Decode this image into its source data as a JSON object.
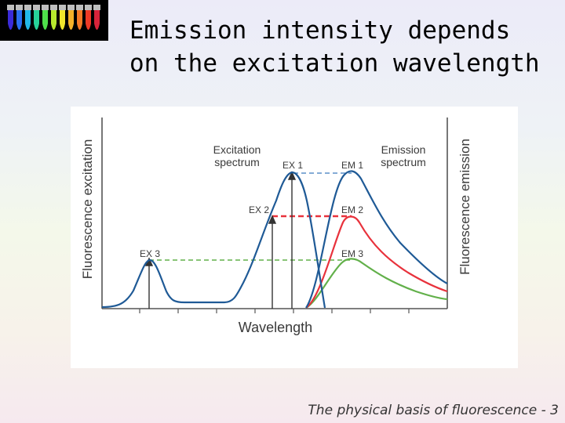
{
  "slide": {
    "title": "Emission intensity depends on the excitation wavelength",
    "footer": "The physical basis of fluorescence - 3"
  },
  "logo": {
    "tube_colors": [
      "#3b2bd8",
      "#2a6ff0",
      "#22b8e8",
      "#27d39a",
      "#4ee04a",
      "#b7ea2d",
      "#f0e62c",
      "#f5b22a",
      "#f47a26",
      "#ee3a26",
      "#d8233a"
    ]
  },
  "diagram": {
    "y_left_label": "Fluorescence excitation",
    "y_right_label": "Fluorescence emission",
    "x_label": "Wavelength",
    "excitation_label": [
      "Excitation",
      "spectrum"
    ],
    "emission_label": [
      "Emission",
      "spectrum"
    ],
    "ex_labels": [
      "EX 1",
      "EX 2",
      "EX 3"
    ],
    "em_labels": [
      "EM 1",
      "EM 2",
      "EM 3"
    ],
    "colors": {
      "excitation": "#1f5a96",
      "em1": "#1f5a96",
      "em2": "#e8323c",
      "em3": "#62b04a",
      "guide1": "#5b8fc8",
      "guide2": "#e8323c",
      "guide3": "#62b04a",
      "axis": "#555555"
    }
  }
}
